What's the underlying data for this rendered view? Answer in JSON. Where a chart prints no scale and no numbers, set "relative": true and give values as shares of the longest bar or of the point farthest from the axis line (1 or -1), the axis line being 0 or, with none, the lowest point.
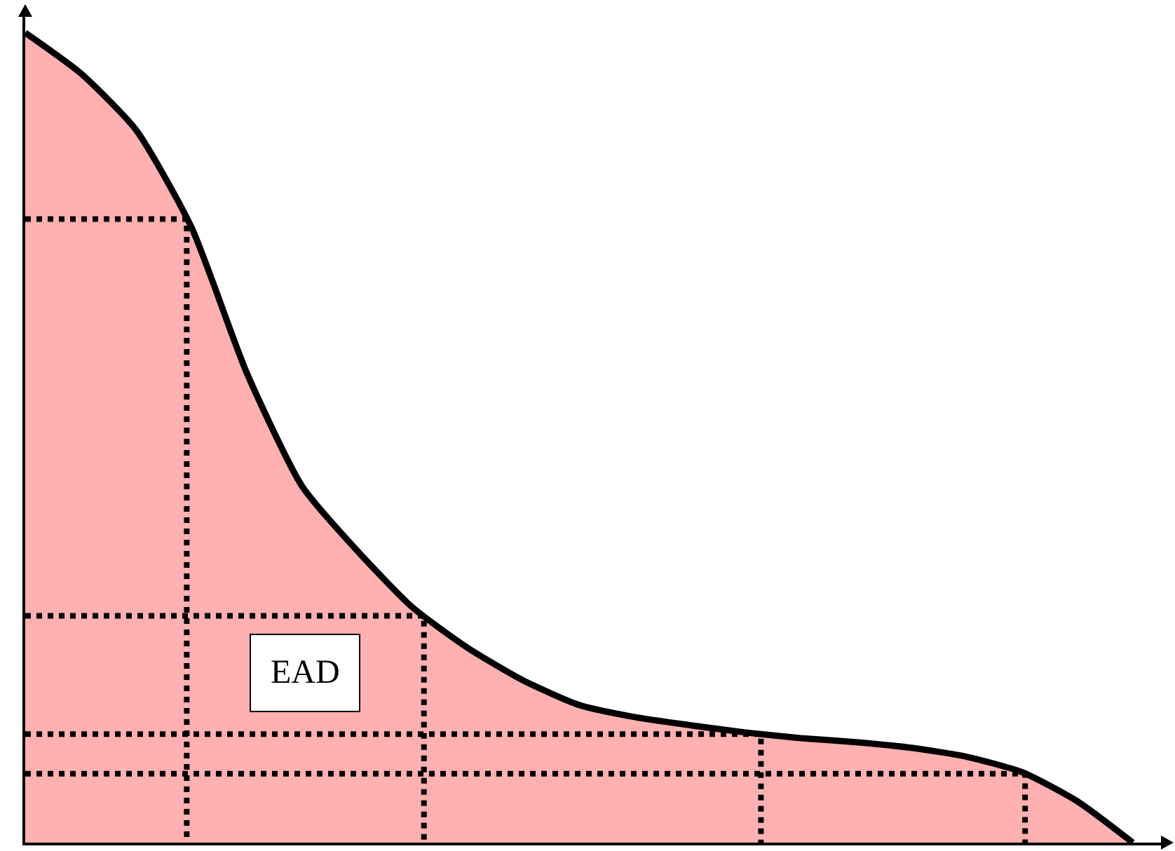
{
  "chart_data": {
    "type": "area",
    "relative": true,
    "categories": [
      null,
      null,
      null,
      null,
      null,
      null,
      null,
      null,
      null,
      null,
      null,
      null,
      null,
      null,
      null,
      null,
      null,
      null,
      null,
      null,
      null
    ],
    "series": [
      {
        "color": "#ffb0b0",
        "values": [
          1,
          0.95,
          0.88,
          0.76,
          0.58,
          0.44,
          0.36,
          0.29,
          0.24,
          0.2,
          0.17,
          0.155,
          0.145,
          0.136,
          0.129,
          0.124,
          0.117,
          0.106,
          0.087,
          0.051,
          0
        ]
      }
    ],
    "ref_lines": [
      {
        "axis": "y",
        "value": 0.77,
        "line_style": "dotted",
        "color": "#000000"
      },
      {
        "axis": "y",
        "value": 0.28,
        "line_style": "dotted",
        "color": "#000000"
      },
      {
        "axis": "y",
        "value": 0.134,
        "line_style": "dotted",
        "color": "#000000"
      },
      {
        "axis": "y",
        "value": 0.085,
        "line_style": "dotted",
        "color": "#000000"
      }
    ],
    "annotations": [
      "EAD"
    ]
  }
}
